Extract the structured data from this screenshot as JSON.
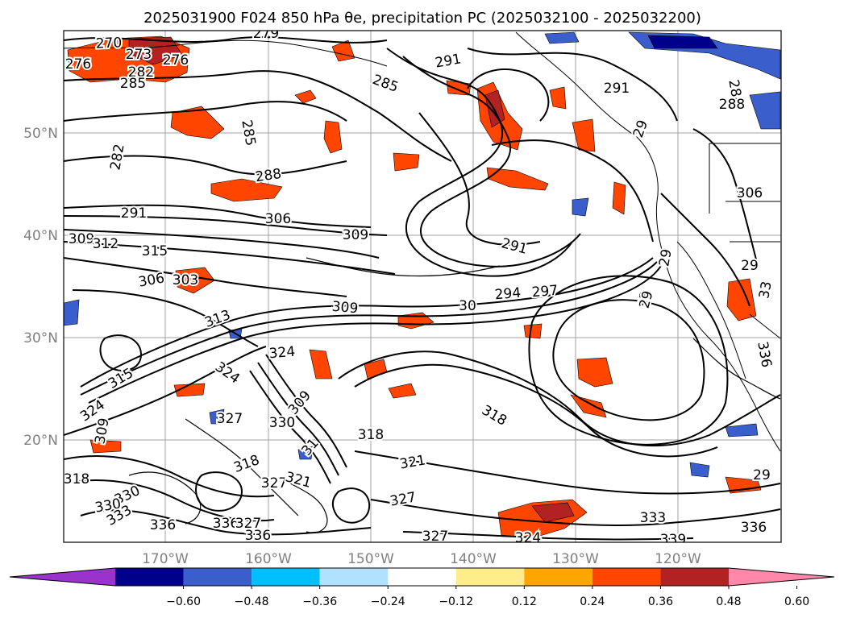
{
  "title": "2025031900 F024 850 hPa θe, precipitation PC (2025032100 - 2025032200)",
  "map": {
    "lon_ticks": [
      "170°W",
      "160°W",
      "150°W",
      "140°W",
      "130°W",
      "120°W"
    ],
    "lat_ticks": [
      "50°N",
      "40°N",
      "30°N",
      "20°N"
    ],
    "extent": {
      "lon_min": -178,
      "lon_max": -108,
      "lat_min": 10,
      "lat_max": 60
    },
    "gridlines": true,
    "contour_variable": "850 hPa theta-e (K)",
    "contour_labels": [
      "270",
      "279",
      "276",
      "273",
      "282",
      "285",
      "291",
      "285",
      "291",
      "288",
      "29",
      "285",
      "282",
      "288",
      "291",
      "306",
      "309",
      "309",
      "312",
      "315",
      "306",
      "303",
      "291",
      "294",
      "297",
      "29",
      "313",
      "309",
      "30",
      "315",
      "324",
      "324",
      "324",
      "327",
      "309",
      "330",
      "309",
      "318",
      "318",
      "31",
      "321",
      "318",
      "327",
      "321",
      "327",
      "330",
      "330",
      "333",
      "336",
      "327",
      "336",
      "327",
      "336",
      "324",
      "333",
      "339",
      "336",
      "318",
      "33",
      "336",
      "33",
      "306",
      "29",
      "29",
      "29",
      "276",
      "288"
    ],
    "colors": {
      "coast": "#000000",
      "contour": "#000000",
      "grid": "#a0a0a0",
      "land_border": "#000000"
    }
  },
  "colorbar": {
    "tick_labels": [
      "−0.60",
      "−0.48",
      "−0.36",
      "−0.24",
      "−0.12",
      "0.12",
      "0.24",
      "0.36",
      "0.48",
      "0.60"
    ],
    "bins": [
      {
        "color": "#9933cc"
      },
      {
        "color": "#00008b"
      },
      {
        "color": "#3a5fcd"
      },
      {
        "color": "#00bfff"
      },
      {
        "color": "#b0e2ff"
      },
      {
        "color": "#ffffff"
      },
      {
        "color": "#ffec8b"
      },
      {
        "color": "#ffa500"
      },
      {
        "color": "#ff4500"
      },
      {
        "color": "#b22222"
      },
      {
        "color": "#ff88aa"
      }
    ]
  }
}
